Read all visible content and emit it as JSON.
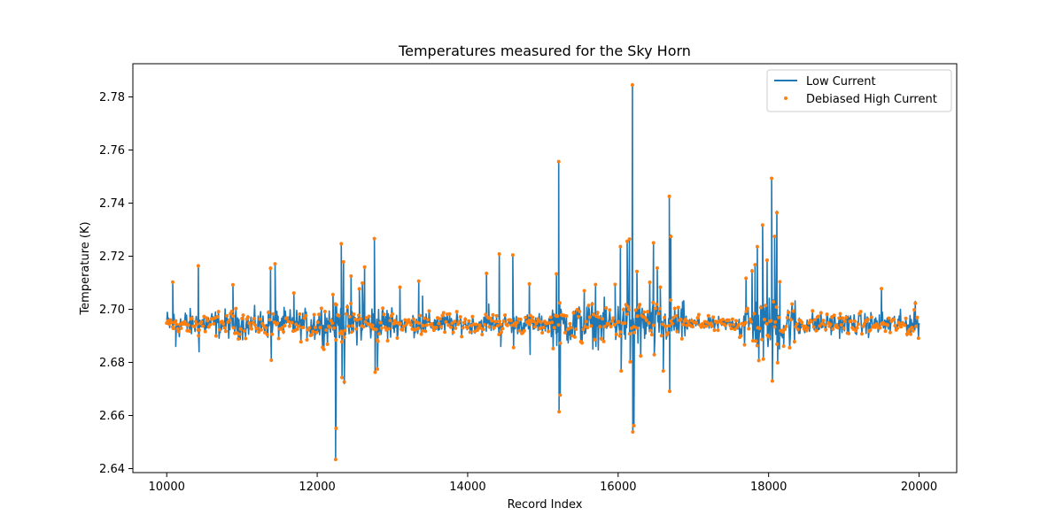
{
  "chart_data": {
    "type": "line",
    "title": "Temperatures measured for the Sky Horn",
    "xlabel": "Record Index",
    "ylabel": "Temperature (K)",
    "xlim": [
      9550,
      20500
    ],
    "ylim": [
      2.6385,
      2.7925
    ],
    "xticks": [
      10000,
      12000,
      14000,
      16000,
      18000,
      20000
    ],
    "yticks": [
      2.64,
      2.66,
      2.68,
      2.7,
      2.72,
      2.74,
      2.76,
      2.78
    ],
    "ytick_labels": [
      "2.64",
      "2.66",
      "2.68",
      "2.70",
      "2.72",
      "2.74",
      "2.76",
      "2.78"
    ],
    "grid": false,
    "legend_position": "top-right",
    "baseline": 2.6945,
    "series": [
      {
        "name": "Low Current",
        "style": "line",
        "color": "#1f77b4",
        "x_range": [
          10000,
          20000
        ],
        "noise_segments": [
          {
            "x": [
              10000,
              11900
            ],
            "halfwidth": 0.006
          },
          {
            "x": [
              11900,
              13000
            ],
            "halfwidth": 0.008
          },
          {
            "x": [
              13000,
              13800
            ],
            "halfwidth": 0.005
          },
          {
            "x": [
              13800,
              15100
            ],
            "halfwidth": 0.004
          },
          {
            "x": [
              15100,
              16900
            ],
            "halfwidth": 0.009
          },
          {
            "x": [
              16900,
              17600
            ],
            "halfwidth": 0.003
          },
          {
            "x": [
              17600,
              18400
            ],
            "halfwidth": 0.011
          },
          {
            "x": [
              18400,
              20000
            ],
            "halfwidth": 0.005
          }
        ],
        "spikes": [
          {
            "x": 10080,
            "y": 2.71
          },
          {
            "x": 10120,
            "y": 2.686
          },
          {
            "x": 10420,
            "y": 2.716
          },
          {
            "x": 10430,
            "y": 2.684
          },
          {
            "x": 10880,
            "y": 2.709
          },
          {
            "x": 11380,
            "y": 2.716
          },
          {
            "x": 11390,
            "y": 2.681
          },
          {
            "x": 11440,
            "y": 2.717
          },
          {
            "x": 11690,
            "y": 2.706
          },
          {
            "x": 12210,
            "y": 2.706
          },
          {
            "x": 12245,
            "y": 2.644
          },
          {
            "x": 12250,
            "y": 2.655
          },
          {
            "x": 12320,
            "y": 2.725
          },
          {
            "x": 12330,
            "y": 2.675
          },
          {
            "x": 12350,
            "y": 2.718
          },
          {
            "x": 12360,
            "y": 2.672
          },
          {
            "x": 12450,
            "y": 2.712
          },
          {
            "x": 12560,
            "y": 2.708
          },
          {
            "x": 12600,
            "y": 2.71
          },
          {
            "x": 12630,
            "y": 2.716
          },
          {
            "x": 12760,
            "y": 2.727
          },
          {
            "x": 12770,
            "y": 2.677
          },
          {
            "x": 12800,
            "y": 2.678
          },
          {
            "x": 13100,
            "y": 2.708
          },
          {
            "x": 13350,
            "y": 2.71
          },
          {
            "x": 13400,
            "y": 2.705
          },
          {
            "x": 14250,
            "y": 2.714
          },
          {
            "x": 14280,
            "y": 2.702
          },
          {
            "x": 14420,
            "y": 2.721
          },
          {
            "x": 14440,
            "y": 2.686
          },
          {
            "x": 14600,
            "y": 2.72
          },
          {
            "x": 14610,
            "y": 2.686
          },
          {
            "x": 14820,
            "y": 2.71
          },
          {
            "x": 14830,
            "y": 2.683
          },
          {
            "x": 15180,
            "y": 2.713
          },
          {
            "x": 15210,
            "y": 2.756
          },
          {
            "x": 15215,
            "y": 2.662
          },
          {
            "x": 15230,
            "y": 2.668
          },
          {
            "x": 15550,
            "y": 2.707
          },
          {
            "x": 15700,
            "y": 2.709
          },
          {
            "x": 15960,
            "y": 2.709
          },
          {
            "x": 16030,
            "y": 2.724
          },
          {
            "x": 16040,
            "y": 2.677
          },
          {
            "x": 16120,
            "y": 2.725
          },
          {
            "x": 16150,
            "y": 2.726
          },
          {
            "x": 16160,
            "y": 2.68
          },
          {
            "x": 16190,
            "y": 2.785
          },
          {
            "x": 16195,
            "y": 2.654
          },
          {
            "x": 16210,
            "y": 2.656
          },
          {
            "x": 16250,
            "y": 2.714
          },
          {
            "x": 16300,
            "y": 2.682
          },
          {
            "x": 16420,
            "y": 2.71
          },
          {
            "x": 16470,
            "y": 2.725
          },
          {
            "x": 16480,
            "y": 2.683
          },
          {
            "x": 16520,
            "y": 2.715
          },
          {
            "x": 16560,
            "y": 2.708
          },
          {
            "x": 16600,
            "y": 2.677
          },
          {
            "x": 16680,
            "y": 2.742
          },
          {
            "x": 16685,
            "y": 2.669
          },
          {
            "x": 16700,
            "y": 2.728
          },
          {
            "x": 17700,
            "y": 2.712
          },
          {
            "x": 17780,
            "y": 2.715
          },
          {
            "x": 17820,
            "y": 2.717
          },
          {
            "x": 17850,
            "y": 2.724
          },
          {
            "x": 17870,
            "y": 2.681
          },
          {
            "x": 17920,
            "y": 2.732
          },
          {
            "x": 17930,
            "y": 2.682
          },
          {
            "x": 17980,
            "y": 2.718
          },
          {
            "x": 18040,
            "y": 2.749
          },
          {
            "x": 18050,
            "y": 2.673
          },
          {
            "x": 18080,
            "y": 2.727
          },
          {
            "x": 18110,
            "y": 2.737
          },
          {
            "x": 18120,
            "y": 2.68
          },
          {
            "x": 18150,
            "y": 2.71
          },
          {
            "x": 18200,
            "y": 2.686
          },
          {
            "x": 19500,
            "y": 2.708
          },
          {
            "x": 19950,
            "y": 2.703
          }
        ]
      },
      {
        "name": "Debiased High Current",
        "style": "scatter",
        "color": "#ff7f0e",
        "follows": "Low Current",
        "marker_size": "small"
      }
    ]
  }
}
